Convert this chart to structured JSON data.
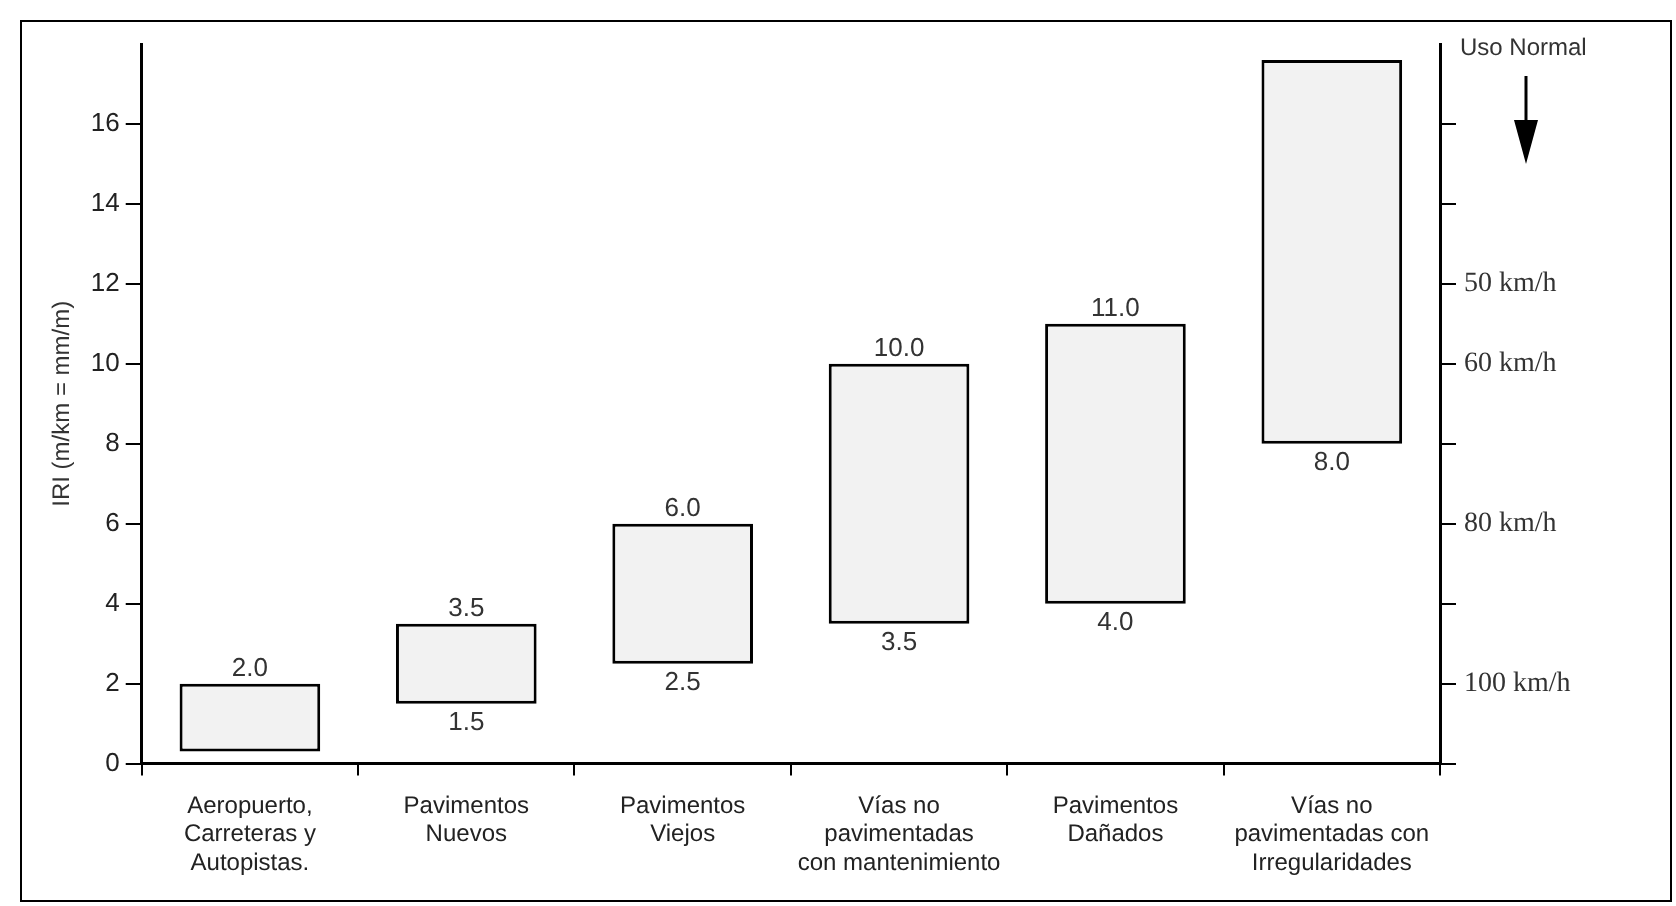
{
  "chart_data": {
    "type": "bar",
    "categories": [
      "Aeropuerto,\nCarreteras y\nAutopistas.",
      "Pavimentos\nNuevos",
      "Pavimentos\nViejos",
      "Vías no\npavimentadas\ncon mantenimiento",
      "Pavimentos\nDañados",
      "Vías no\npavimentadas con\nIrregularidades"
    ],
    "base": [
      0.3,
      1.5,
      2.5,
      3.5,
      4.0,
      8.0
    ],
    "values": [
      1.7,
      2.0,
      3.5,
      6.5,
      7.0,
      9.6
    ],
    "color": "#f2f2f2",
    "ylabel": "IRI (m/km = mm/m)",
    "ylim": [
      0,
      18
    ],
    "yticks": [
      0,
      2,
      4,
      6,
      8,
      10,
      12,
      14,
      16
    ],
    "grid": false,
    "legend": false,
    "annotations": [
      "Uso Normal",
      "100 km/h",
      "80 km/h",
      "60 km/h",
      "50 km/h",
      {
        "text": "2.0",
        "x": "Aeropuerto,\nCarreteras y\nAutopistas.",
        "y": 2.0
      },
      {
        "text": "3.5",
        "x": "Pavimentos\nNuevos",
        "y": 3.5
      },
      {
        "text": "1.5",
        "x": "Pavimentos\nNuevos",
        "y": 1.5
      },
      {
        "text": "6.0",
        "x": "Pavimentos\nViejos",
        "y": 6.0
      },
      {
        "text": "2.5",
        "x": "Pavimentos\nViejos",
        "y": 2.5
      },
      {
        "text": "10.0",
        "x": "Vías no\npavimentadas\ncon mantenimiento",
        "y": 10.0
      },
      {
        "text": "3.5",
        "x": "Vías no\npavimentadas\ncon mantenimiento",
        "y": 3.5
      },
      {
        "text": "11.0",
        "x": "Pavimentos\nDañados",
        "y": 11.0
      },
      {
        "text": "4.0",
        "x": "Pavimentos\nDañados",
        "y": 4.0
      },
      {
        "text": "8.0",
        "x": "Vías no\npavimentadas con\nIrregularidades",
        "y": 8.0
      }
    ]
  }
}
